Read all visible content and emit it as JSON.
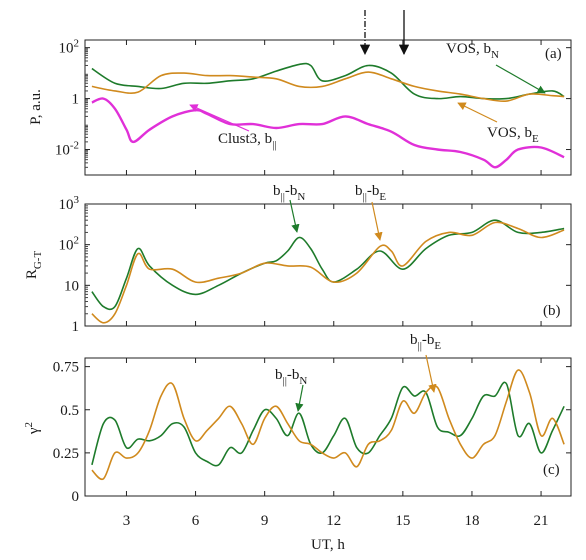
{
  "colors": {
    "green": "#1e7b2b",
    "orange": "#d08a1e",
    "magenta": "#e030d8"
  },
  "chart_data": [
    {
      "type": "line",
      "panel_label": "(a)",
      "ylabel": "P, a.u.",
      "yscale": "log",
      "ylim": [
        0.001,
        200
      ],
      "xlim": [
        1.2,
        22.3
      ],
      "yticks": [
        0.01,
        1,
        100
      ],
      "ytick_labels": [
        {
          "base": "10",
          "exp": "-2",
          "value": 0.01
        },
        {
          "base": "1",
          "exp": "",
          "value": 1
        },
        {
          "base": "10",
          "exp": "2",
          "value": 100
        }
      ],
      "series": [
        {
          "key": "green",
          "color": "#1e7b2b",
          "x": [
            1.5,
            2.5,
            3.5,
            4.5,
            5.5,
            6.5,
            7.5,
            8.5,
            9.5,
            10.5,
            11.0,
            11.5,
            12.5,
            13.5,
            14.5,
            15.5,
            16.5,
            17.5,
            18.5,
            19.5,
            20.5,
            21.5,
            22.0
          ],
          "y": [
            15,
            4,
            3,
            2.5,
            4,
            4,
            5,
            6,
            12,
            22,
            20,
            5,
            8,
            20,
            10,
            1.5,
            1,
            1.2,
            1,
            1,
            1.5,
            2,
            1.2
          ]
        },
        {
          "key": "orange",
          "color": "#d08a1e",
          "x": [
            1.5,
            2.5,
            3.5,
            4.5,
            5.5,
            6.5,
            7.5,
            8.5,
            9.5,
            10.5,
            11.5,
            12.5,
            13.5,
            14.5,
            15.5,
            16.5,
            17.5,
            18.5,
            19.5,
            20.5,
            21.5,
            22.0
          ],
          "y": [
            3,
            2,
            1.8,
            8,
            10,
            8,
            8,
            7,
            6,
            3,
            3,
            6,
            11,
            6,
            3,
            2,
            1.5,
            1,
            0.8,
            1.5,
            1.3,
            1.2
          ]
        },
        {
          "key": "magenta",
          "color": "#e030d8",
          "x": [
            1.5,
            2.0,
            2.5,
            3.0,
            3.3,
            4.0,
            5.0,
            6.0,
            6.5,
            7.5,
            8.5,
            9.5,
            10.5,
            11.5,
            12.5,
            13.5,
            14.5,
            15.5,
            16.5,
            17.5,
            18.5,
            19.0,
            19.5,
            20.0,
            21.0,
            22.0
          ],
          "y": [
            0.7,
            1.0,
            0.4,
            0.06,
            0.02,
            0.06,
            0.2,
            0.35,
            0.25,
            0.1,
            0.1,
            0.07,
            0.1,
            0.1,
            0.2,
            0.1,
            0.05,
            0.015,
            0.01,
            0.008,
            0.004,
            0.002,
            0.004,
            0.01,
            0.012,
            0.005
          ]
        }
      ],
      "annotations": [
        {
          "base": "VOS, b",
          "sub": "N",
          "series": "green"
        },
        {
          "base": "Clust3, b",
          "sub": "||",
          "series": "magenta"
        },
        {
          "base": "VOS, b",
          "sub": "E",
          "series": "orange"
        }
      ],
      "event_markers": [
        {
          "x": 13.4,
          "style": "dash-dot"
        },
        {
          "x": 15.0,
          "style": "solid"
        }
      ]
    },
    {
      "type": "line",
      "panel_label": "(b)",
      "ylabel": "R",
      "ylabel_sub": "G-T",
      "yscale": "log",
      "ylim": [
        1,
        1000
      ],
      "xlim": [
        1.2,
        22.3
      ],
      "yticks": [
        1,
        10,
        100,
        1000
      ],
      "ytick_labels": [
        {
          "base": "1",
          "exp": "",
          "value": 1
        },
        {
          "base": "10",
          "exp": "",
          "value": 10
        },
        {
          "base": "10",
          "exp": "2",
          "value": 100
        },
        {
          "base": "10",
          "exp": "3",
          "value": 1000
        }
      ],
      "series": [
        {
          "key": "green",
          "color": "#1e7b2b",
          "x": [
            1.5,
            2.0,
            2.5,
            3.0,
            3.5,
            4.0,
            5.0,
            6.0,
            7.0,
            8.0,
            9.0,
            9.5,
            10.0,
            10.5,
            11.0,
            11.5,
            12.0,
            13.0,
            14.0,
            15.0,
            16.0,
            17.0,
            18.0,
            19.0,
            20.0,
            21.0,
            22.0
          ],
          "y": [
            7,
            3,
            3,
            15,
            80,
            30,
            10,
            6,
            10,
            20,
            35,
            40,
            70,
            150,
            80,
            25,
            12,
            25,
            70,
            25,
            80,
            170,
            200,
            400,
            200,
            200,
            250
          ]
        },
        {
          "key": "orange",
          "color": "#d08a1e",
          "x": [
            1.5,
            2.0,
            2.5,
            3.0,
            3.5,
            4.0,
            5.0,
            6.0,
            7.0,
            8.0,
            9.0,
            10.0,
            11.0,
            12.0,
            13.0,
            14.0,
            14.5,
            15.0,
            16.0,
            17.0,
            18.0,
            19.0,
            20.0,
            21.0,
            22.0
          ],
          "y": [
            2,
            1.2,
            2,
            10,
            60,
            25,
            25,
            12,
            15,
            20,
            35,
            30,
            28,
            12,
            20,
            90,
            70,
            30,
            120,
            200,
            170,
            350,
            250,
            150,
            230
          ]
        }
      ],
      "annotations": [
        {
          "base": "b",
          "sub": "||",
          "tail": "-b",
          "tail_sub": "N",
          "series": "green"
        },
        {
          "base": "b",
          "sub": "||",
          "tail": "-b",
          "tail_sub": "E",
          "series": "orange"
        }
      ]
    },
    {
      "type": "line",
      "panel_label": "(c)",
      "ylabel": "γ",
      "ylabel_sup": "2",
      "yscale": "linear",
      "ylim": [
        0,
        0.8
      ],
      "xlim": [
        1.2,
        22.3
      ],
      "yticks": [
        0,
        0.25,
        0.5,
        0.75
      ],
      "ytick_labels": [
        {
          "base": "0",
          "exp": "",
          "value": 0
        },
        {
          "base": "0.25",
          "exp": "",
          "value": 0.25
        },
        {
          "base": "0.5",
          "exp": "",
          "value": 0.5
        },
        {
          "base": "0.75",
          "exp": "",
          "value": 0.75
        }
      ],
      "xlabel": "UT, h",
      "xticks": [
        3,
        6,
        9,
        12,
        15,
        18,
        21
      ],
      "xtick_labels": [
        "3",
        "6",
        "9",
        "12",
        "15",
        "18",
        "21"
      ],
      "series": [
        {
          "key": "green",
          "color": "#1e7b2b",
          "x": [
            1.5,
            2.0,
            2.5,
            3.0,
            3.5,
            4.0,
            4.5,
            5.0,
            5.5,
            6.0,
            6.5,
            7.0,
            7.5,
            8.0,
            8.5,
            9.0,
            9.5,
            10.0,
            10.5,
            11.0,
            11.5,
            12.0,
            12.5,
            13.0,
            13.5,
            14.0,
            14.5,
            15.0,
            15.5,
            16.0,
            16.5,
            17.0,
            17.5,
            18.0,
            18.5,
            19.0,
            19.5,
            20.0,
            20.5,
            21.0,
            21.5,
            22.0
          ],
          "y": [
            0.18,
            0.42,
            0.44,
            0.28,
            0.33,
            0.32,
            0.35,
            0.42,
            0.4,
            0.25,
            0.2,
            0.18,
            0.28,
            0.25,
            0.38,
            0.5,
            0.45,
            0.35,
            0.48,
            0.3,
            0.25,
            0.35,
            0.45,
            0.28,
            0.25,
            0.35,
            0.45,
            0.63,
            0.58,
            0.6,
            0.4,
            0.37,
            0.35,
            0.45,
            0.58,
            0.58,
            0.65,
            0.35,
            0.42,
            0.25,
            0.38,
            0.52
          ]
        },
        {
          "key": "orange",
          "color": "#d08a1e",
          "x": [
            1.5,
            2.0,
            2.5,
            3.0,
            3.5,
            4.0,
            4.5,
            5.0,
            5.5,
            6.0,
            6.5,
            7.0,
            7.5,
            8.0,
            8.5,
            9.0,
            9.5,
            10.0,
            10.5,
            11.0,
            11.5,
            12.0,
            12.5,
            13.0,
            13.5,
            14.0,
            14.5,
            15.0,
            15.5,
            16.0,
            16.5,
            17.0,
            17.5,
            18.0,
            18.5,
            19.0,
            19.5,
            20.0,
            20.5,
            21.0,
            21.5,
            22.0
          ],
          "y": [
            0.15,
            0.1,
            0.25,
            0.22,
            0.25,
            0.38,
            0.58,
            0.65,
            0.45,
            0.32,
            0.38,
            0.45,
            0.52,
            0.42,
            0.3,
            0.45,
            0.52,
            0.42,
            0.32,
            0.3,
            0.25,
            0.22,
            0.25,
            0.17,
            0.3,
            0.32,
            0.38,
            0.55,
            0.48,
            0.6,
            0.63,
            0.45,
            0.3,
            0.22,
            0.3,
            0.35,
            0.55,
            0.73,
            0.6,
            0.35,
            0.45,
            0.3
          ]
        }
      ],
      "annotations": [
        {
          "base": "b",
          "sub": "||",
          "tail": "-b",
          "tail_sub": "N",
          "series": "green"
        },
        {
          "base": "b",
          "sub": "||",
          "tail": "-b",
          "tail_sub": "E",
          "series": "orange"
        }
      ]
    }
  ]
}
